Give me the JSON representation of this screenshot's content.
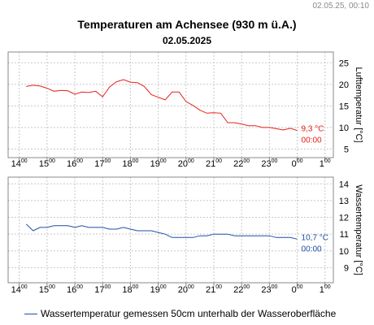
{
  "timestamp": "02.05.25, 00:10",
  "title": "Temperaturen am Achensee (930 m ü.A.)",
  "subtitle": "02.05.2025",
  "legend_label": "Wassertemperatur gemessen 50cm unterhalb der Wasseroberfläche",
  "colors": {
    "air": "#e8201a",
    "water": "#1f4fa8",
    "grid": "#c8c8c8",
    "frame": "#888888"
  },
  "chart_data": [
    {
      "type": "line",
      "ylabel": "Lufttemperatur [°C]",
      "yticks": [
        5,
        10,
        15,
        20,
        25
      ],
      "ylim": [
        3,
        27.5
      ],
      "xlim": [
        13.6,
        25.3
      ],
      "xticks": [
        {
          "h": "14",
          "m": "00"
        },
        {
          "h": "15",
          "m": "00"
        },
        {
          "h": "16",
          "m": "00"
        },
        {
          "h": "17",
          "m": "00"
        },
        {
          "h": "18",
          "m": "00"
        },
        {
          "h": "19",
          "m": "00"
        },
        {
          "h": "20",
          "m": "00"
        },
        {
          "h": "21",
          "m": "00"
        },
        {
          "h": "22",
          "m": "00"
        },
        {
          "h": "23",
          "m": "00"
        },
        {
          "h": "0",
          "m": "00"
        },
        {
          "h": "1",
          "m": "00"
        }
      ],
      "last_value": "9,3 °C",
      "last_time": "00:00",
      "series": [
        {
          "x": [
            14.25,
            14.5,
            14.75,
            15.0,
            15.25,
            15.5,
            15.75,
            16.0,
            16.25,
            16.5,
            16.75,
            17.0,
            17.25,
            17.5,
            17.75,
            18.0,
            18.25,
            18.5,
            18.75,
            19.0,
            19.25,
            19.5,
            19.75,
            20.0,
            20.25,
            20.5,
            20.75,
            21.0,
            21.25,
            21.5,
            21.75,
            22.0,
            22.25,
            22.5,
            22.75,
            23.0,
            23.25,
            23.5,
            23.75,
            24.0
          ],
          "y": [
            19.5,
            19.8,
            19.6,
            19.1,
            18.4,
            18.6,
            18.5,
            17.7,
            18.2,
            18.1,
            18.4,
            17.1,
            19.4,
            20.6,
            21.1,
            20.5,
            20.4,
            19.5,
            17.6,
            17.0,
            16.4,
            18.2,
            18.2,
            16.0,
            15.1,
            14.0,
            13.3,
            13.4,
            13.3,
            11.1,
            11.1,
            10.8,
            10.4,
            10.4,
            10.0,
            10.0,
            9.7,
            9.4,
            9.8,
            9.3
          ]
        }
      ]
    },
    {
      "type": "line",
      "ylabel": "Wassertemperatur [°C]",
      "yticks": [
        9,
        10,
        11,
        12,
        13,
        14
      ],
      "ylim": [
        8.1,
        14.4
      ],
      "xlim": [
        13.6,
        25.3
      ],
      "xticks": [
        {
          "h": "14",
          "m": "00"
        },
        {
          "h": "15",
          "m": "00"
        },
        {
          "h": "16",
          "m": "00"
        },
        {
          "h": "17",
          "m": "00"
        },
        {
          "h": "18",
          "m": "00"
        },
        {
          "h": "19",
          "m": "00"
        },
        {
          "h": "20",
          "m": "00"
        },
        {
          "h": "21",
          "m": "00"
        },
        {
          "h": "22",
          "m": "00"
        },
        {
          "h": "23",
          "m": "00"
        },
        {
          "h": "0",
          "m": "00"
        },
        {
          "h": "1",
          "m": "00"
        }
      ],
      "last_value": "10,7 °C",
      "last_time": "00:00",
      "series": [
        {
          "x": [
            14.25,
            14.5,
            14.75,
            15.0,
            15.25,
            15.5,
            15.75,
            16.0,
            16.25,
            16.5,
            16.75,
            17.0,
            17.25,
            17.5,
            17.75,
            18.0,
            18.25,
            18.5,
            18.75,
            19.0,
            19.25,
            19.5,
            19.75,
            20.0,
            20.25,
            20.5,
            20.75,
            21.0,
            21.25,
            21.5,
            21.75,
            22.0,
            22.25,
            22.5,
            22.75,
            23.0,
            23.25,
            23.5,
            23.75,
            24.0
          ],
          "y": [
            11.6,
            11.2,
            11.4,
            11.4,
            11.5,
            11.5,
            11.5,
            11.4,
            11.5,
            11.4,
            11.4,
            11.4,
            11.3,
            11.3,
            11.4,
            11.3,
            11.2,
            11.2,
            11.2,
            11.1,
            11.0,
            10.8,
            10.8,
            10.8,
            10.8,
            10.9,
            10.9,
            11.0,
            11.0,
            11.0,
            10.9,
            10.9,
            10.9,
            10.9,
            10.9,
            10.9,
            10.8,
            10.8,
            10.8,
            10.7
          ]
        }
      ]
    }
  ]
}
